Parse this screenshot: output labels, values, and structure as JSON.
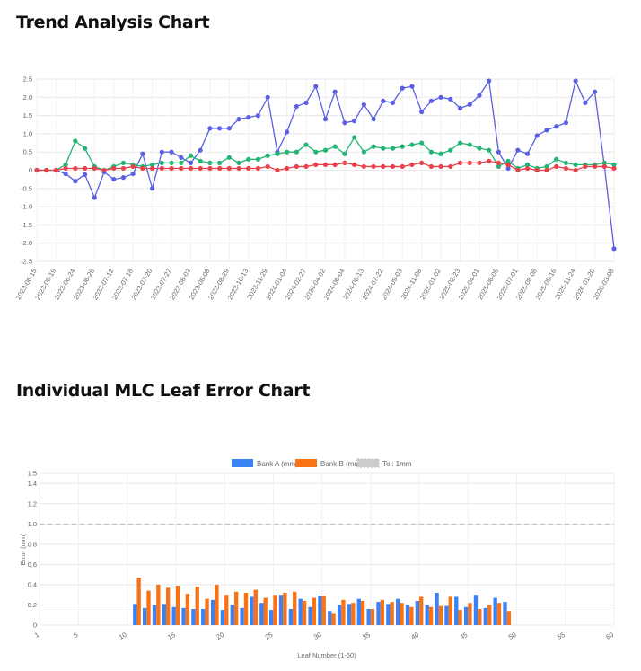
{
  "colors": {
    "series_blue": "#5b5fe3",
    "series_green": "#22b573",
    "series_red": "#e8414a",
    "bank_a": "#3b82f6",
    "bank_b": "#f97316",
    "tol": "#cccccc",
    "grid": "#e8e8e8"
  },
  "chart_data": [
    {
      "type": "line",
      "title": "Trend Analysis Chart",
      "ylim": [
        -2.5,
        2.5
      ],
      "yticks": [
        "2.5",
        "2.0",
        "1.5",
        "1.0",
        "0.5",
        "0",
        "-0.5",
        "-1.0",
        "-1.5",
        "-2.0",
        "-2.5"
      ],
      "xtick_labels": [
        "2023-06-15",
        "2023-06-19",
        "2023-06-24",
        "2023-06-28",
        "2023-07-12",
        "2023-07-18",
        "2023-07-20",
        "2023-07-27",
        "2023-08-02",
        "2023-08-08",
        "2023-08-29",
        "2023-10-13",
        "2023-11-29",
        "2024-01-04",
        "2024-02-27",
        "2024-04-02",
        "2024-06-04",
        "2024-06-13",
        "2024-07-22",
        "2024-09-03",
        "2024-11-08",
        "2025-01-02",
        "2025-02-23",
        "2025-04-01",
        "2025-06-05",
        "2025-07-01",
        "2025-08-08",
        "2025-09-16",
        "2025-11-24",
        "2026-01-20",
        "2026-03-08"
      ],
      "series": [
        {
          "values": [
            0,
            0,
            0,
            -0.1,
            -0.3,
            -0.12,
            -0.75,
            -0.05,
            -0.25,
            -0.2,
            -0.1,
            0.45,
            -0.5,
            0.5,
            0.5,
            0.35,
            0.2,
            0.55,
            1.15,
            1.15,
            1.15,
            1.4,
            1.45,
            1.5,
            2.0,
            0.5,
            1.05,
            1.75,
            1.85,
            2.3,
            1.4,
            2.15,
            1.3,
            1.35,
            1.8,
            1.4,
            1.9,
            1.85,
            2.25,
            2.3,
            1.6,
            1.9,
            2.0,
            1.95,
            1.7,
            1.8,
            2.05,
            2.45,
            0.5,
            0.05,
            0.55,
            0.45,
            0.95,
            1.1,
            1.2,
            1.3,
            2.45,
            1.85,
            2.15,
            0.1,
            -2.15
          ]
        },
        {
          "values": [
            0,
            0,
            0,
            0.15,
            0.8,
            0.6,
            0.1,
            0.0,
            0.1,
            0.2,
            0.15,
            0.1,
            0.15,
            0.2,
            0.2,
            0.2,
            0.4,
            0.25,
            0.2,
            0.2,
            0.35,
            0.2,
            0.3,
            0.3,
            0.4,
            0.45,
            0.5,
            0.5,
            0.7,
            0.5,
            0.55,
            0.65,
            0.45,
            0.9,
            0.5,
            0.65,
            0.6,
            0.6,
            0.65,
            0.7,
            0.75,
            0.5,
            0.45,
            0.55,
            0.75,
            0.7,
            0.6,
            0.55,
            0.1,
            0.25,
            0.05,
            0.15,
            0.05,
            0.1,
            0.3,
            0.2,
            0.15,
            0.15,
            0.15,
            0.2,
            0.15
          ]
        },
        {
          "values": [
            0,
            0,
            0,
            0.05,
            0.05,
            0.05,
            0.05,
            0.0,
            0.05,
            0.05,
            0.1,
            0.05,
            0.05,
            0.05,
            0.05,
            0.05,
            0.05,
            0.05,
            0.05,
            0.05,
            0.05,
            0.05,
            0.05,
            0.05,
            0.1,
            0.0,
            0.05,
            0.1,
            0.1,
            0.15,
            0.15,
            0.15,
            0.2,
            0.15,
            0.1,
            0.1,
            0.1,
            0.1,
            0.1,
            0.15,
            0.2,
            0.1,
            0.1,
            0.1,
            0.2,
            0.2,
            0.2,
            0.25,
            0.2,
            0.15,
            0.0,
            0.05,
            0.0,
            0.0,
            0.1,
            0.05,
            0.0,
            0.1,
            0.1,
            0.1,
            0.05
          ]
        }
      ]
    },
    {
      "type": "bar",
      "title": "Individual MLC Leaf Error Chart",
      "xlabel": "Leaf Number (1-60)",
      "ylabel": "Error (mm)",
      "ylim": [
        0,
        1.5
      ],
      "yticks": [
        "0",
        "0.2",
        "0.4",
        "0.6",
        "0.8",
        "1.0",
        "1.2",
        "1.4",
        "1.5"
      ],
      "xticks": [
        "1",
        "5",
        "10",
        "15",
        "20",
        "25",
        "30",
        "35",
        "40",
        "45",
        "50",
        "55",
        "60"
      ],
      "tolerance": 1.0,
      "legend": [
        "Bank A (mm)",
        "Bank B (mm)",
        "Tol: 1mm"
      ],
      "legend_position": "top",
      "leaves_start": 11,
      "series": [
        {
          "name": "Bank A (mm)",
          "values": [
            0.21,
            0.17,
            0.2,
            0.21,
            0.18,
            0.17,
            0.16,
            0.16,
            0.25,
            0.15,
            0.2,
            0.17,
            0.28,
            0.22,
            0.15,
            0.3,
            0.16,
            0.26,
            0.18,
            0.29,
            0.14,
            0.2,
            0.21,
            0.26,
            0.16,
            0.23,
            0.21,
            0.26,
            0.2,
            0.24,
            0.2,
            0.32,
            0.19,
            0.28,
            0.18,
            0.3,
            0.17,
            0.27,
            0.23,
            0.0
          ]
        },
        {
          "name": "Bank B (mm)",
          "values": [
            0.47,
            0.34,
            0.4,
            0.37,
            0.39,
            0.31,
            0.38,
            0.26,
            0.4,
            0.3,
            0.33,
            0.32,
            0.35,
            0.27,
            0.3,
            0.32,
            0.33,
            0.24,
            0.27,
            0.29,
            0.12,
            0.25,
            0.22,
            0.24,
            0.16,
            0.25,
            0.23,
            0.22,
            0.18,
            0.28,
            0.18,
            0.19,
            0.28,
            0.15,
            0.22,
            0.16,
            0.2,
            0.22,
            0.14,
            0.0
          ]
        }
      ]
    }
  ]
}
